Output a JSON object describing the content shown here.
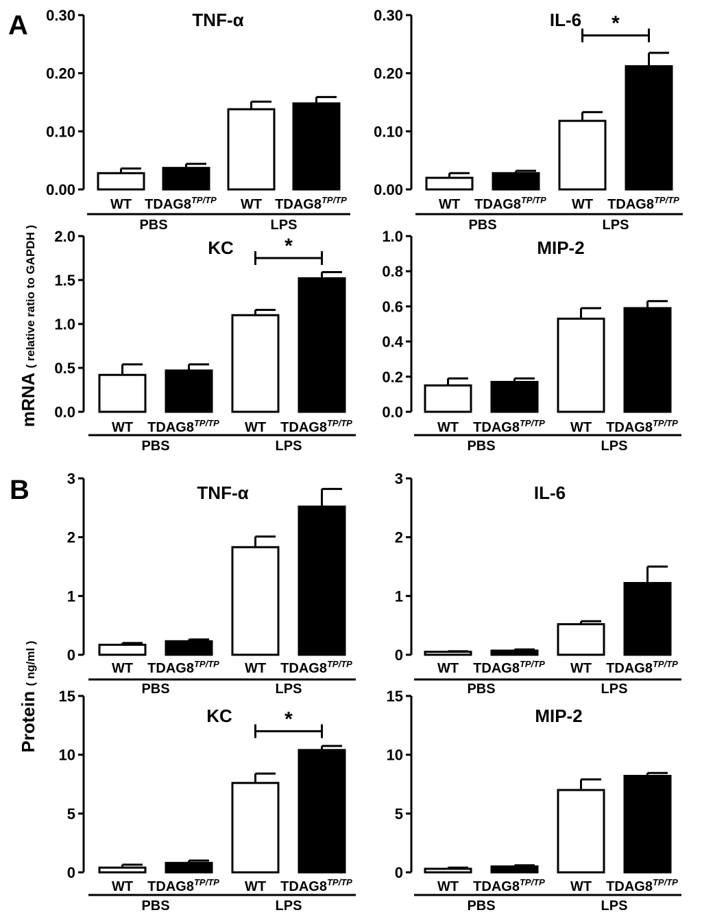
{
  "figure": {
    "panel_labels": [
      "A",
      "B"
    ],
    "ylabels": {
      "A": {
        "main": "mRNA",
        "sub": "( relative ratio to GAPDH )"
      },
      "B": {
        "main": "Protein",
        "sub": "( ng/ml )"
      }
    },
    "groups": [
      "PBS",
      "LPS"
    ],
    "category_wt": "WT",
    "category_ko_base": "TDAG8",
    "category_ko_sup": "TP/TP",
    "significance_mark": "*"
  },
  "chart_data": [
    {
      "id": "A-TNF",
      "type": "bar",
      "title": "TNF-α",
      "ylim": [
        0,
        0.3
      ],
      "ticks": [
        0.0,
        0.1,
        0.2,
        0.3
      ],
      "tick_labels": [
        "0.00",
        "0.10",
        "0.20",
        "0.30"
      ],
      "categories": [
        "WT",
        "TDAG8 TP/TP",
        "WT",
        "TDAG8 TP/TP"
      ],
      "groups": [
        "PBS",
        "PBS",
        "LPS",
        "LPS"
      ],
      "values": [
        0.028,
        0.037,
        0.138,
        0.148
      ],
      "errors": [
        0.008,
        0.007,
        0.013,
        0.011
      ],
      "fill": [
        "#ffffff",
        "#000000",
        "#ffffff",
        "#000000"
      ],
      "significance": null
    },
    {
      "id": "A-IL6",
      "type": "bar",
      "title": "IL-6",
      "ylim": [
        0,
        0.3
      ],
      "ticks": [
        0.0,
        0.1,
        0.2,
        0.3
      ],
      "tick_labels": [
        "0.00",
        "0.10",
        "0.20",
        "0.30"
      ],
      "categories": [
        "WT",
        "TDAG8 TP/TP",
        "WT",
        "TDAG8 TP/TP"
      ],
      "groups": [
        "PBS",
        "PBS",
        "LPS",
        "LPS"
      ],
      "values": [
        0.02,
        0.028,
        0.118,
        0.212
      ],
      "errors": [
        0.008,
        0.004,
        0.015,
        0.023
      ],
      "fill": [
        "#ffffff",
        "#000000",
        "#ffffff",
        "#000000"
      ],
      "significance": {
        "between": [
          2,
          3
        ],
        "level": 0.265,
        "mark": "*"
      }
    },
    {
      "id": "A-KC",
      "type": "bar",
      "title": "KC",
      "ylim": [
        0,
        2.0
      ],
      "ticks": [
        0.0,
        0.5,
        1.0,
        1.5,
        2.0
      ],
      "tick_labels": [
        "0.0",
        "0.5",
        "1.0",
        "1.5",
        "2.0"
      ],
      "categories": [
        "WT",
        "TDAG8 TP/TP",
        "WT",
        "TDAG8 TP/TP"
      ],
      "groups": [
        "PBS",
        "PBS",
        "LPS",
        "LPS"
      ],
      "values": [
        0.42,
        0.47,
        1.1,
        1.52
      ],
      "errors": [
        0.12,
        0.07,
        0.06,
        0.07
      ],
      "fill": [
        "#ffffff",
        "#000000",
        "#ffffff",
        "#000000"
      ],
      "significance": {
        "between": [
          2,
          3
        ],
        "level": 1.75,
        "mark": "*"
      }
    },
    {
      "id": "A-MIP2",
      "type": "bar",
      "title": "MIP-2",
      "ylim": [
        0,
        1.0
      ],
      "ticks": [
        0.0,
        0.2,
        0.4,
        0.6,
        0.8,
        1.0
      ],
      "tick_labels": [
        "0.0",
        "0.2",
        "0.4",
        "0.6",
        "0.8",
        "1.0"
      ],
      "categories": [
        "WT",
        "TDAG8 TP/TP",
        "WT",
        "TDAG8 TP/TP"
      ],
      "groups": [
        "PBS",
        "PBS",
        "LPS",
        "LPS"
      ],
      "values": [
        0.15,
        0.17,
        0.53,
        0.59
      ],
      "errors": [
        0.04,
        0.02,
        0.06,
        0.04
      ],
      "fill": [
        "#ffffff",
        "#000000",
        "#ffffff",
        "#000000"
      ],
      "significance": null
    },
    {
      "id": "B-TNF",
      "type": "bar",
      "title": "TNF-α",
      "ylim": [
        0,
        3
      ],
      "ticks": [
        0,
        1,
        2,
        3
      ],
      "tick_labels": [
        "0",
        "1",
        "2",
        "3"
      ],
      "categories": [
        "WT",
        "TDAG8 TP/TP",
        "WT",
        "TDAG8 TP/TP"
      ],
      "groups": [
        "PBS",
        "PBS",
        "LPS",
        "LPS"
      ],
      "values": [
        0.17,
        0.23,
        1.83,
        2.52
      ],
      "errors": [
        0.03,
        0.03,
        0.18,
        0.3
      ],
      "fill": [
        "#ffffff",
        "#000000",
        "#ffffff",
        "#000000"
      ],
      "significance": null
    },
    {
      "id": "B-IL6",
      "type": "bar",
      "title": "IL-6",
      "ylim": [
        0,
        3
      ],
      "ticks": [
        0,
        1,
        2,
        3
      ],
      "tick_labels": [
        "0",
        "1",
        "2",
        "3"
      ],
      "categories": [
        "WT",
        "TDAG8 TP/TP",
        "WT",
        "TDAG8 TP/TP"
      ],
      "groups": [
        "PBS",
        "PBS",
        "LPS",
        "LPS"
      ],
      "values": [
        0.05,
        0.07,
        0.52,
        1.22
      ],
      "errors": [
        0.01,
        0.02,
        0.05,
        0.28
      ],
      "fill": [
        "#ffffff",
        "#000000",
        "#ffffff",
        "#000000"
      ],
      "significance": null
    },
    {
      "id": "B-KC",
      "type": "bar",
      "title": "KC",
      "ylim": [
        0,
        15
      ],
      "ticks": [
        0,
        5,
        10,
        15
      ],
      "tick_labels": [
        "0",
        "5",
        "10",
        "15"
      ],
      "categories": [
        "WT",
        "TDAG8 TP/TP",
        "WT",
        "TDAG8 TP/TP"
      ],
      "groups": [
        "PBS",
        "PBS",
        "LPS",
        "LPS"
      ],
      "values": [
        0.4,
        0.8,
        7.6,
        10.4
      ],
      "errors": [
        0.25,
        0.2,
        0.8,
        0.35
      ],
      "fill": [
        "#ffffff",
        "#000000",
        "#ffffff",
        "#000000"
      ],
      "significance": {
        "between": [
          2,
          3
        ],
        "level": 12.0,
        "mark": "*"
      }
    },
    {
      "id": "B-MIP2",
      "type": "bar",
      "title": "MIP-2",
      "ylim": [
        0,
        15
      ],
      "ticks": [
        0,
        5,
        10,
        15
      ],
      "tick_labels": [
        "0",
        "5",
        "10",
        "15"
      ],
      "categories": [
        "WT",
        "TDAG8 TP/TP",
        "WT",
        "TDAG8 TP/TP"
      ],
      "groups": [
        "PBS",
        "PBS",
        "LPS",
        "LPS"
      ],
      "values": [
        0.3,
        0.5,
        7.0,
        8.2
      ],
      "errors": [
        0.1,
        0.1,
        0.9,
        0.25
      ],
      "fill": [
        "#ffffff",
        "#000000",
        "#ffffff",
        "#000000"
      ],
      "significance": null
    }
  ]
}
